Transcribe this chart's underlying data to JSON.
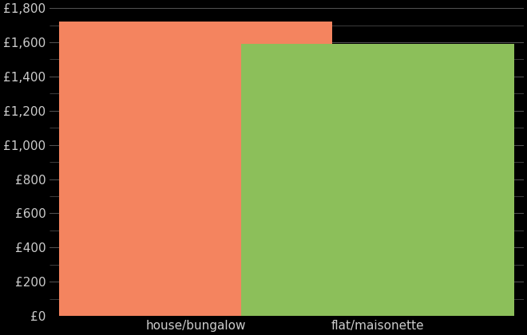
{
  "categories": [
    "house/bungalow",
    "flat/maisonette"
  ],
  "values": [
    1720,
    1590
  ],
  "bar_colors": [
    "#F4845F",
    "#8CBF5A"
  ],
  "background_color": "#000000",
  "text_color": "#cccccc",
  "grid_color": "#555555",
  "ylim": [
    0,
    1800
  ],
  "ytick_step": 200,
  "bar_width": 0.75,
  "xlabel": "",
  "ylabel": "",
  "figsize": [
    6.6,
    4.2
  ],
  "dpi": 100
}
